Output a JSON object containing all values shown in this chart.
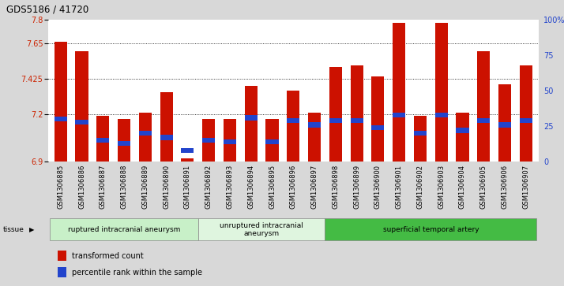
{
  "title": "GDS5186 / 41720",
  "samples": [
    "GSM1306885",
    "GSM1306886",
    "GSM1306887",
    "GSM1306888",
    "GSM1306889",
    "GSM1306890",
    "GSM1306891",
    "GSM1306892",
    "GSM1306893",
    "GSM1306894",
    "GSM1306895",
    "GSM1306896",
    "GSM1306897",
    "GSM1306898",
    "GSM1306899",
    "GSM1306900",
    "GSM1306901",
    "GSM1306902",
    "GSM1306903",
    "GSM1306904",
    "GSM1306905",
    "GSM1306906",
    "GSM1306907"
  ],
  "transformed_count": [
    7.66,
    7.6,
    7.19,
    7.17,
    7.21,
    7.34,
    6.92,
    7.17,
    7.17,
    7.38,
    7.17,
    7.35,
    7.21,
    7.5,
    7.51,
    7.44,
    7.78,
    7.19,
    7.78,
    7.21,
    7.6,
    7.39,
    7.51
  ],
  "percentile_rank": [
    30,
    28,
    15,
    13,
    20,
    17,
    8,
    15,
    14,
    31,
    14,
    29,
    26,
    29,
    29,
    24,
    33,
    20,
    33,
    22,
    29,
    26,
    29
  ],
  "groups": [
    {
      "label": "ruptured intracranial aneurysm",
      "start": 0,
      "end": 7,
      "color": "#c8f0c8"
    },
    {
      "label": "unruptured intracranial\naneurysm",
      "start": 7,
      "end": 13,
      "color": "#dff5df"
    },
    {
      "label": "superficial temporal artery",
      "start": 13,
      "end": 23,
      "color": "#44bb44"
    }
  ],
  "ymin": 6.9,
  "ymax": 7.8,
  "yticks": [
    6.9,
    7.2,
    7.425,
    7.65,
    7.8
  ],
  "ytick_labels": [
    "6.9",
    "7.2",
    "7.425",
    "7.65",
    "7.8"
  ],
  "right_yticks": [
    0,
    25,
    50,
    75,
    100
  ],
  "right_ytick_labels": [
    "0",
    "25",
    "50",
    "75",
    "100%"
  ],
  "bar_color": "#cc1100",
  "blue_color": "#2244cc",
  "bg_color": "#d8d8d8",
  "plot_bg": "#ffffff",
  "grid_color": "#000000",
  "left_axis_color": "#cc2200",
  "right_axis_color": "#2244cc",
  "tissue_label": "tissue",
  "legend_items": [
    {
      "label": "transformed count",
      "color": "#cc1100"
    },
    {
      "label": "percentile rank within the sample",
      "color": "#2244cc"
    }
  ]
}
